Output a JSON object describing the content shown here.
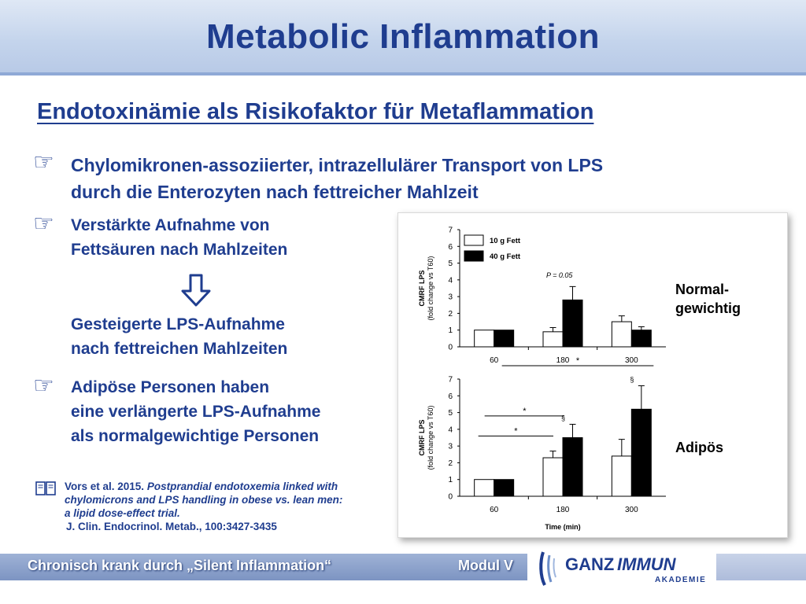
{
  "title": "Metabolic Inflammation",
  "subtitle": "Endotoxinämie als Risikofaktor für Metaflammation",
  "main_bullet": {
    "line1": "Chylomikronen-assoziierter, intrazellulärer Transport von LPS",
    "line2": "durch die Enterozyten nach fettreicher Mahlzeit"
  },
  "bullets": [
    {
      "line1": "Verstärkte Aufnahme von",
      "line2": "Fettsäuren nach Mahlzeiten"
    },
    {
      "line1": "Gesteigerte LPS-Aufnahme",
      "line2": "nach fettreichen Mahlzeiten"
    },
    {
      "line1": "Adipöse Personen haben",
      "line2": "eine verlängerte LPS-Aufnahme",
      "line3": "als normalgewichtige Personen"
    }
  ],
  "reference": {
    "authors": "Vors et al. 2015.",
    "title_line1": "Postprandial endotoxemia linked with",
    "title_line2": "chylomicrons and LPS handling in obese vs. lean men:",
    "title_line3": "a lipid dose-effect trial.",
    "journal": "J. Clin. Endocrinol. Metab., 100:3427-3435"
  },
  "side_labels": {
    "normal_line1": "Normal-",
    "normal_line2": "gewichtig",
    "obese": "Adipös"
  },
  "footer": {
    "left": "Chronisch krank durch „Silent Inflammation“",
    "right": "Modul V",
    "logo_ganz": "GANZ",
    "logo_immun": "IMMUN",
    "logo_akademie": "AKADEMIE"
  },
  "colors": {
    "primary": "#1f3d8f",
    "bar_dark": "#000000",
    "bar_light": "#ffffff"
  },
  "icons": {
    "bullet": "pointing-hand-icon",
    "arrow": "down-arrow-icon",
    "reference": "book-icon"
  },
  "chart_data": [
    {
      "type": "bar",
      "categories": [
        "60",
        "180",
        "300"
      ],
      "series": [
        {
          "name": "10 g Fett",
          "values": [
            1.0,
            0.9,
            1.5
          ],
          "errors": [
            0,
            0.25,
            0.35
          ]
        },
        {
          "name": "40 g Fett",
          "values": [
            1.0,
            2.8,
            1.0
          ],
          "errors": [
            0,
            0.8,
            0.2
          ]
        }
      ],
      "ylabel_line1": "CMRF LPS",
      "ylabel_line2": "(fold change vs T60)",
      "ylim": [
        0,
        7
      ],
      "yticks": [
        "0",
        "1",
        "2",
        "3",
        "4",
        "5",
        "6",
        "7"
      ],
      "annotation": "P = 0.05",
      "legend": "top-left"
    },
    {
      "type": "bar",
      "categories": [
        "60",
        "180",
        "300"
      ],
      "series": [
        {
          "name": "10 g Fett",
          "values": [
            1.0,
            2.3,
            2.4
          ],
          "errors": [
            0,
            0.4,
            1.0
          ]
        },
        {
          "name": "40 g Fett",
          "values": [
            1.0,
            3.5,
            5.2
          ],
          "errors": [
            0,
            0.8,
            1.4
          ]
        }
      ],
      "ylabel_line1": "CMRF LPS",
      "ylabel_line2": "(fold change vs T60)",
      "xlabel": "Time (min)",
      "ylim": [
        0,
        7
      ],
      "yticks": [
        "0",
        "1",
        "2",
        "3",
        "4",
        "5",
        "6",
        "7"
      ],
      "significance": [
        "*",
        "*",
        "*",
        "§",
        "§"
      ]
    }
  ]
}
